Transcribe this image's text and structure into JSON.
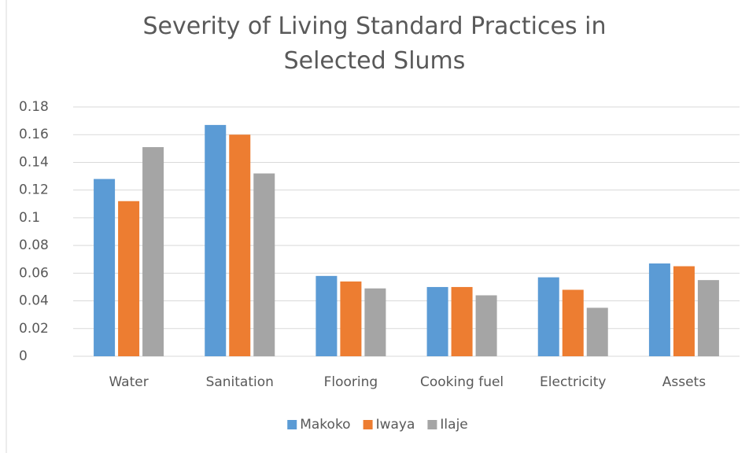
{
  "chart_data": {
    "type": "bar",
    "title": "Severity of Living Standard Practices in Selected Slums",
    "categories": [
      "Water",
      "Sanitation",
      "Flooring",
      "Cooking fuel",
      "Electricity",
      "Assets"
    ],
    "series": [
      {
        "name": "Makoko",
        "color": "#5b9bd5",
        "values": [
          0.128,
          0.167,
          0.058,
          0.05,
          0.057,
          0.067
        ]
      },
      {
        "name": "Iwaya",
        "color": "#ed7d31",
        "values": [
          0.112,
          0.16,
          0.054,
          0.05,
          0.048,
          0.065
        ]
      },
      {
        "name": "Ilaje",
        "color": "#a5a5a5",
        "values": [
          0.151,
          0.132,
          0.049,
          0.044,
          0.035,
          0.055
        ]
      }
    ],
    "ylim": [
      0,
      0.18
    ],
    "yticks": [
      0,
      0.02,
      0.04,
      0.06,
      0.08,
      0.1,
      0.12,
      0.14,
      0.16,
      0.18
    ],
    "grid": true,
    "legend": "bottom"
  }
}
